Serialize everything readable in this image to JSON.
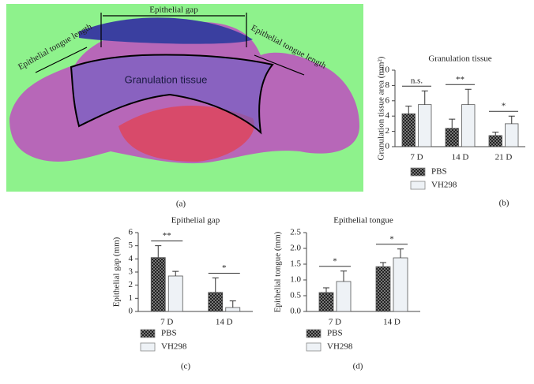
{
  "image_panel": {
    "labels": [
      "Epithelial gap",
      "Epithelial tongue length",
      "Epithelial tongue length",
      "Granulation tissue"
    ],
    "panel_label": "(a)"
  },
  "chart_data": [
    {
      "type": "bar",
      "title": "Granulation tissue",
      "ylabel": "Granulation tissue area (mm²)",
      "panel_label": "(b)",
      "categories": [
        "7 D",
        "14 D",
        "21 D"
      ],
      "annotations": [
        "n.s.",
        "**",
        "*"
      ],
      "ylim": [
        0,
        10
      ],
      "yticks": [
        0,
        2,
        4,
        6,
        8,
        10
      ],
      "series": [
        {
          "name": "PBS",
          "color": "#333333",
          "values": [
            4.3,
            2.4,
            1.45
          ],
          "errors": [
            1.0,
            1.2,
            0.45
          ]
        },
        {
          "name": "VH298",
          "color": "#eef2f6",
          "values": [
            5.5,
            5.5,
            3.0
          ],
          "errors": [
            1.8,
            2.0,
            1.0
          ]
        }
      ]
    },
    {
      "type": "bar",
      "title": "Epithelial gap",
      "ylabel": "Epithelial gap (mm)",
      "panel_label": "(c)",
      "categories": [
        "7 D",
        "14 D"
      ],
      "annotations": [
        "**",
        "*"
      ],
      "ylim": [
        0,
        6
      ],
      "yticks": [
        0,
        1,
        2,
        3,
        4,
        5,
        6
      ],
      "series": [
        {
          "name": "PBS",
          "color": "#333333",
          "values": [
            4.1,
            1.45
          ],
          "errors": [
            0.9,
            1.1
          ]
        },
        {
          "name": "VH298",
          "color": "#eef2f6",
          "values": [
            2.7,
            0.3
          ],
          "errors": [
            0.35,
            0.5
          ]
        }
      ]
    },
    {
      "type": "bar",
      "title": "Epithelial tongue",
      "ylabel": "Epithelial tongue (mm)",
      "panel_label": "(d)",
      "categories": [
        "7 D",
        "14 D"
      ],
      "annotations": [
        "*",
        "*"
      ],
      "ylim": [
        0,
        2.5
      ],
      "yticks": [
        {
          "value": 0,
          "label": "0.0"
        },
        0.5,
        {
          "value": 1,
          "label": "1.0"
        },
        1.5,
        {
          "value": 2,
          "label": "2.0"
        },
        2.5
      ],
      "series": [
        {
          "name": "PBS",
          "color": "#333333",
          "values": [
            0.6,
            1.42
          ],
          "errors": [
            0.15,
            0.13
          ]
        },
        {
          "name": "VH298",
          "color": "#eef2f6",
          "values": [
            0.95,
            1.7
          ],
          "errors": [
            0.33,
            0.28
          ]
        }
      ]
    }
  ]
}
